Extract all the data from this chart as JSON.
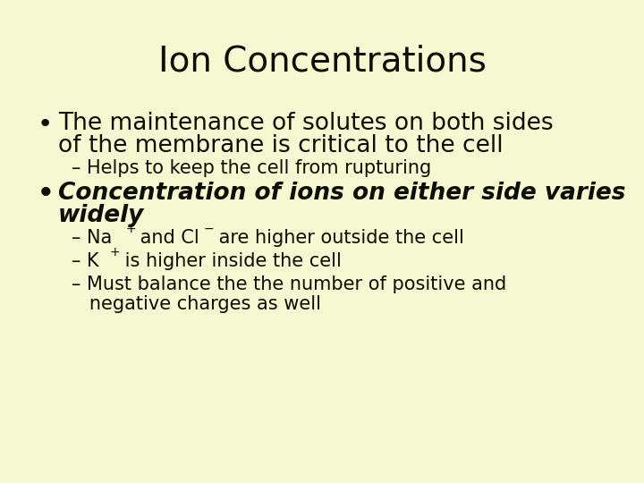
{
  "background_color": "#f5f8d0",
  "title": "Ion Concentrations",
  "title_fontsize": 28,
  "text_color": "#0d0d00",
  "bullet1_line1": "The maintenance of solutes on both sides",
  "bullet1_line2": "of the membrane is critical to the cell",
  "sub1_1": "Helps to keep the cell from rupturing",
  "bullet2_line1": "Concentration of ions on either side varies",
  "bullet2_line2": "widely",
  "sub2_3": "Must balance the the number of positive and",
  "sub2_3b": "   negative charges as well",
  "font_family": "Comic Sans MS",
  "title_fontsize_val": 28,
  "bullet_fontsize": 19,
  "sub_fontsize": 15,
  "bullet2_fontsize": 19
}
